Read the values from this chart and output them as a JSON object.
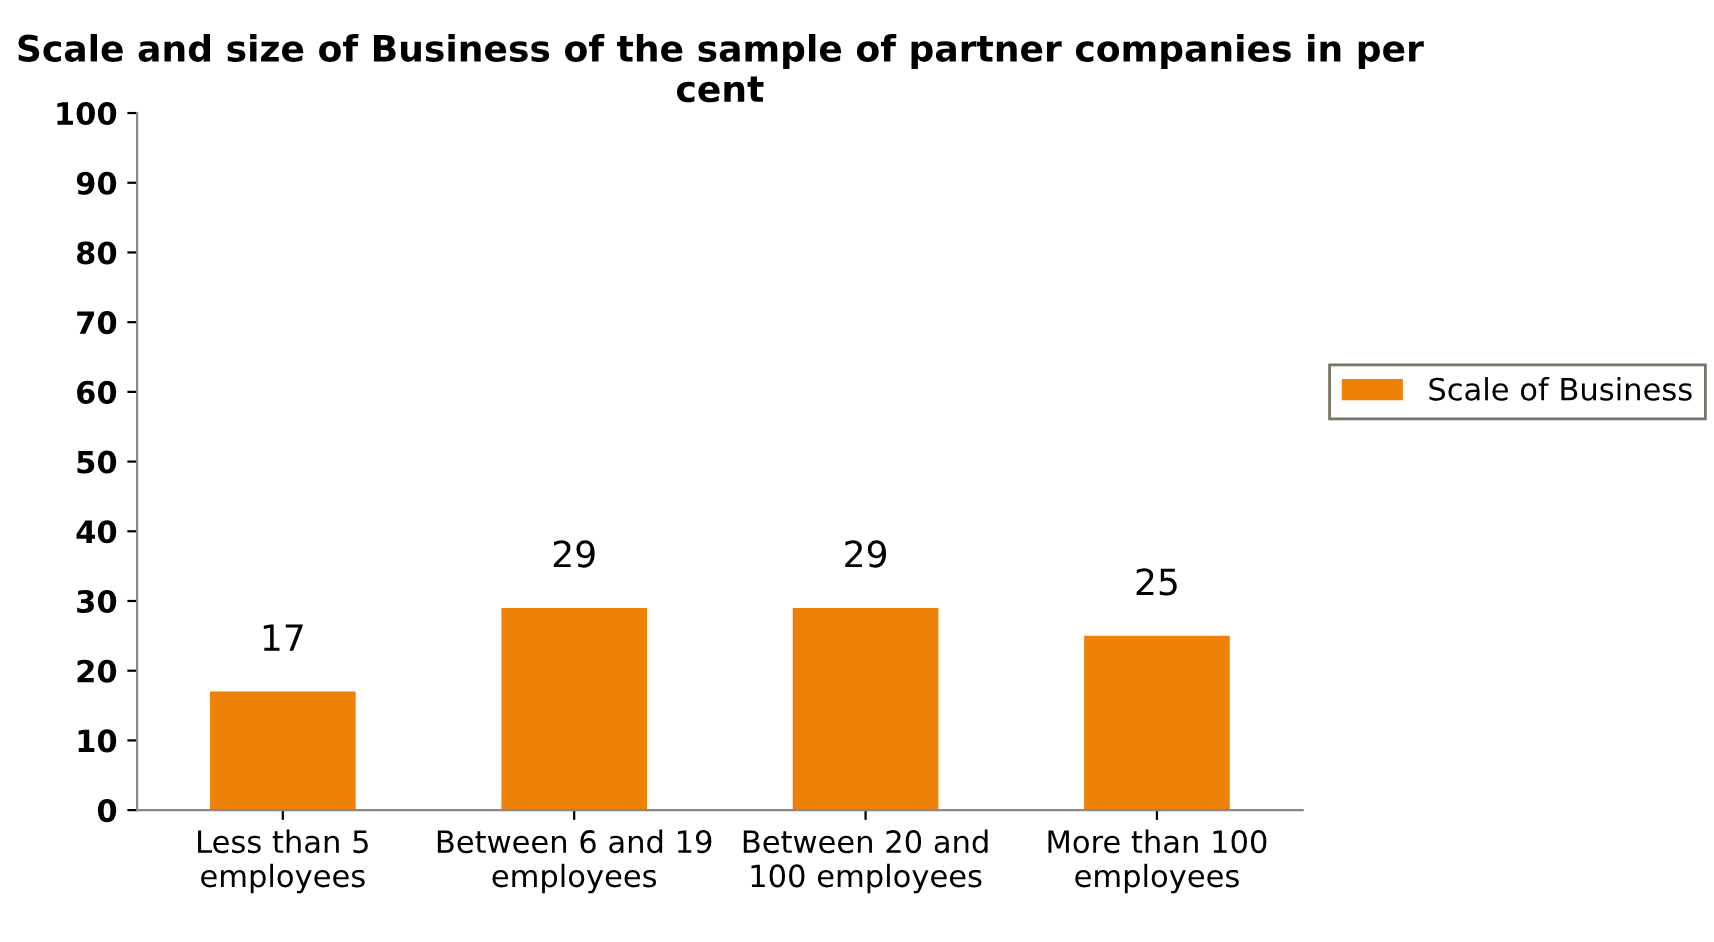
{
  "chart_data": {
    "type": "bar",
    "title": "Scale and size of Business of the sample of partner companies in per cent",
    "categories": [
      "Less than 5\nemployees",
      "Between 6 and 19\nemployees",
      "Between 20 and\n100 employees",
      "More than 100\nemployees"
    ],
    "series": [
      {
        "name": "Scale of Business",
        "color": "#ee8208",
        "values": [
          17,
          29,
          29,
          25
        ]
      }
    ],
    "ylim": [
      0,
      100
    ],
    "yticks": [
      0,
      10,
      20,
      30,
      40,
      50,
      60,
      70,
      80,
      90,
      100
    ],
    "data_labels": true,
    "grid": false,
    "legend": "right"
  }
}
